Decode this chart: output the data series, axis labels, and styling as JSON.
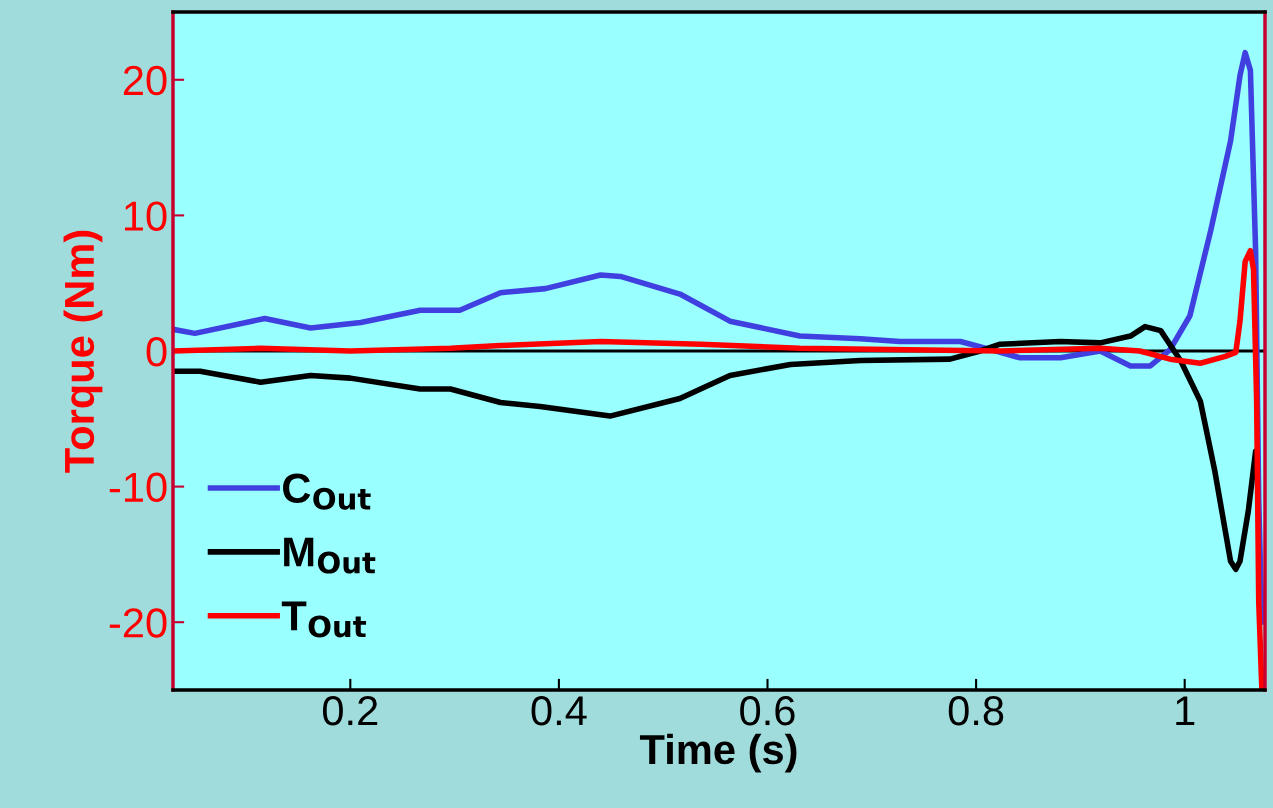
{
  "chart_data": {
    "type": "line",
    "xlabel": "Time (s)",
    "ylabel": "Torque (Nm)",
    "xlim": [
      0.03,
      1.077
    ],
    "ylim": [
      -25,
      25
    ],
    "xticks": [
      0.2,
      0.4,
      0.6,
      0.8,
      1
    ],
    "yticks": [
      -20,
      -10,
      0,
      10,
      20
    ],
    "grid": false,
    "legend": "lower left",
    "marker": "none",
    "line_style": "solid",
    "ref_lines": [
      {
        "axis": "y",
        "value": 0,
        "color": "#000000"
      }
    ],
    "series": [
      {
        "name": "C$_{Out}$",
        "color": "#4040e0",
        "x": [
          0.03,
          0.051,
          0.118,
          0.162,
          0.21,
          0.267,
          0.305,
          0.344,
          0.387,
          0.44,
          0.459,
          0.516,
          0.564,
          0.631,
          0.689,
          0.727,
          0.785,
          0.814,
          0.842,
          0.881,
          0.919,
          0.948,
          0.967,
          0.986,
          1.005,
          1.025,
          1.044,
          1.053,
          1.058,
          1.063,
          1.068,
          1.071,
          1.074
        ],
        "values": [
          1.6,
          1.3,
          2.4,
          1.7,
          2.1,
          3.0,
          3.0,
          4.3,
          4.6,
          5.6,
          5.5,
          4.2,
          2.2,
          1.1,
          0.9,
          0.7,
          0.7,
          0.1,
          -0.5,
          -0.5,
          0,
          -1.1,
          -1.1,
          0.1,
          2.6,
          8.9,
          15.5,
          20.3,
          22,
          20.7,
          7.4,
          -11,
          -20
        ]
      },
      {
        "name": "M$_{Out}$",
        "color": "#000000",
        "x": [
          0.03,
          0.056,
          0.114,
          0.162,
          0.2,
          0.267,
          0.296,
          0.344,
          0.382,
          0.449,
          0.516,
          0.564,
          0.622,
          0.689,
          0.775,
          0.804,
          0.823,
          0.881,
          0.919,
          0.948,
          0.962,
          0.977,
          0.996,
          1.015,
          1.029,
          1.044,
          1.049,
          1.053,
          1.061,
          1.068
        ],
        "values": [
          -1.5,
          -1.5,
          -2.3,
          -1.8,
          -2.0,
          -2.8,
          -2.8,
          -3.8,
          -4.1,
          -4.8,
          -3.5,
          -1.8,
          -1.0,
          -0.7,
          -0.6,
          0,
          0.5,
          0.7,
          0.6,
          1.1,
          1.8,
          1.5,
          -0.7,
          -3.7,
          -8.9,
          -15.5,
          -16.1,
          -15.5,
          -11.8,
          -7.4
        ]
      },
      {
        "name": "T$_{Out}$",
        "color": "#ff0000",
        "x": [
          0.03,
          0.114,
          0.2,
          0.296,
          0.344,
          0.44,
          0.536,
          0.631,
          0.823,
          0.919,
          0.957,
          0.986,
          1.015,
          1.039,
          1.049,
          1.053,
          1.058,
          1.063,
          1.066,
          1.069,
          1.071,
          1.074
        ],
        "values": [
          0,
          0.2,
          0,
          0.2,
          0.4,
          0.7,
          0.5,
          0.2,
          0,
          0.2,
          0,
          -0.6,
          -0.9,
          -0.4,
          -0.1,
          2.2,
          6.6,
          7.4,
          6.0,
          -3.7,
          -18.5,
          -25
        ]
      }
    ]
  }
}
